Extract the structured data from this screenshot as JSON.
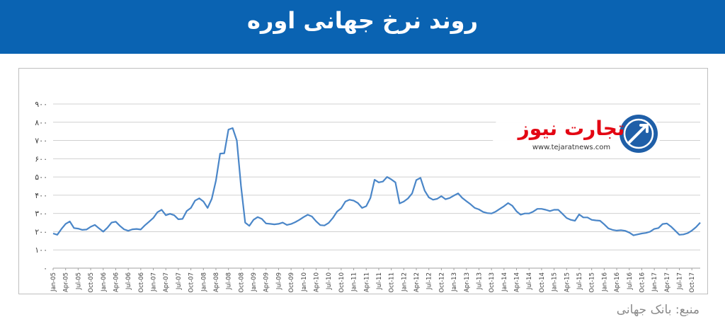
{
  "header": {
    "title": "روند نرخ جهانی اوره"
  },
  "logo": {
    "name": "تجارت نیوز",
    "url_text": "www.tejaratnews.com"
  },
  "source": {
    "text": "منبع: بانک جهانی"
  },
  "colors": {
    "header_bg": "#0a63b2",
    "line": "#4a86c8",
    "grid": "#d0d0d0",
    "logo_red": "#e30613",
    "logo_blue": "#1f5fa8"
  },
  "chart_data": {
    "type": "line",
    "title": "",
    "xlabel": "",
    "ylabel": "",
    "ylim": [
      0,
      900
    ],
    "yticks": [
      "۰",
      "۱۰۰",
      "۲۰۰",
      "۳۰۰",
      "۴۰۰",
      "۵۰۰",
      "۶۰۰",
      "۷۰۰",
      "۸۰۰",
      "۹۰۰"
    ],
    "xticks": [
      "Jan-05",
      "Apr-05",
      "Jul-05",
      "Oct-05",
      "Jan-06",
      "Apr-06",
      "Jul-06",
      "Oct-06",
      "Jan-07",
      "Apr-07",
      "Jul-07",
      "Oct-07",
      "Jan-08",
      "Apr-08",
      "Jul-08",
      "Oct-08",
      "Jan-09",
      "Apr-09",
      "Jul-09",
      "Oct-09",
      "Jan-10",
      "Apr-10",
      "Jul-10",
      "Oct-10",
      "Jan-11",
      "Apr-11",
      "Jul-11",
      "Oct-11",
      "Jan-12",
      "Apr-12",
      "Jul-12",
      "Oct-12",
      "Jan-13",
      "Apr-13",
      "Jul-13",
      "Oct-13",
      "Jan-14",
      "Apr-14",
      "Jul-14",
      "Oct-14",
      "Jan-15",
      "Apr-15",
      "Jul-15",
      "Oct-15",
      "Jan-16",
      "Apr-16",
      "Jul-16",
      "Oct-16",
      "Jan-17",
      "Apr-17",
      "Jul-17",
      "Oct-17"
    ],
    "grid": true,
    "series": [
      {
        "values": [
          190,
          183,
          215,
          243,
          256,
          220,
          217,
          210,
          212,
          227,
          237,
          218,
          200,
          222,
          250,
          255,
          232,
          213,
          205,
          213,
          215,
          212,
          235,
          255,
          275,
          307,
          320,
          290,
          298,
          290,
          268,
          270,
          313,
          330,
          370,
          383,
          366,
          330,
          380,
          480,
          628,
          630,
          760,
          768,
          700,
          450,
          250,
          232,
          265,
          280,
          270,
          245,
          243,
          240,
          243,
          250,
          237,
          242,
          252,
          265,
          280,
          293,
          283,
          257,
          236,
          234,
          248,
          275,
          310,
          328,
          365,
          375,
          370,
          357,
          330,
          340,
          385,
          485,
          470,
          475,
          500,
          487,
          470,
          355,
          365,
          382,
          410,
          483,
          495,
          425,
          388,
          375,
          380,
          395,
          378,
          385,
          398,
          410,
          385,
          367,
          350,
          330,
          322,
          308,
          302,
          300,
          310,
          325,
          340,
          357,
          342,
          312,
          293,
          300,
          300,
          310,
          325,
          325,
          320,
          313,
          320,
          320,
          298,
          275,
          265,
          260,
          295,
          278,
          278,
          265,
          262,
          260,
          240,
          218,
          210,
          206,
          208,
          205,
          195,
          180,
          185,
          190,
          193,
          200,
          215,
          220,
          242,
          245,
          228,
          206,
          183,
          185,
          192,
          206,
          225,
          250
        ]
      }
    ]
  }
}
